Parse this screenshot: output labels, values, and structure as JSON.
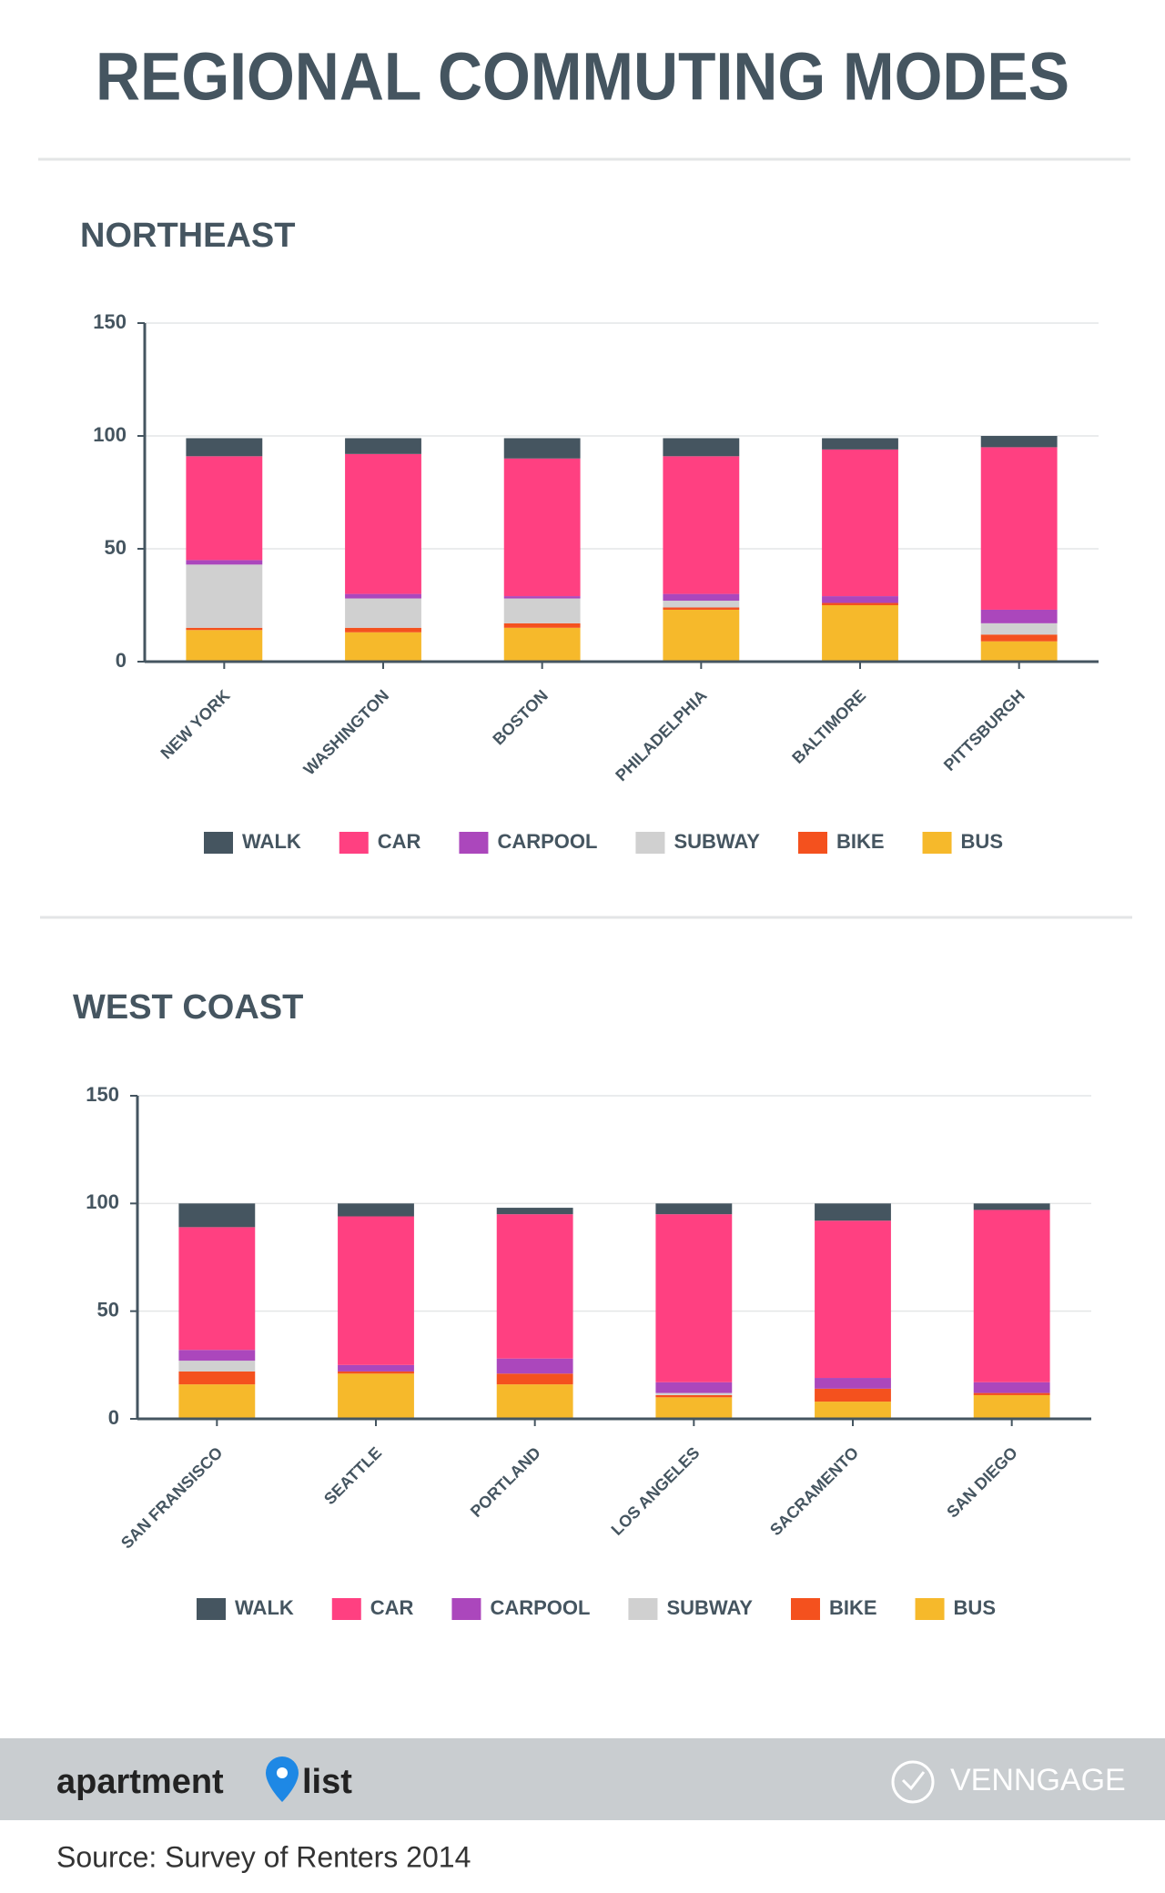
{
  "header": {
    "title": "REGIONAL COMMUTING MODES"
  },
  "chart_data": [
    {
      "type": "stacked_bar",
      "title": "NORTHEAST",
      "categories": [
        "NEW YORK",
        "WASHINGTON",
        "BOSTON",
        "PHILADELPHIA",
        "BALTIMORE",
        "PITTSBURGH"
      ],
      "series": [
        {
          "name": "WALK",
          "color": "#455560",
          "values": [
            8,
            7,
            9,
            8,
            5,
            5
          ]
        },
        {
          "name": "CAR",
          "color": "#ff4081",
          "values": [
            46,
            62,
            61,
            61,
            65,
            72
          ]
        },
        {
          "name": "CARPOOL",
          "color": "#ab47bc",
          "values": [
            2,
            2,
            1,
            3,
            3,
            6
          ]
        },
        {
          "name": "SUBWAY",
          "color": "#d0d0d0",
          "values": [
            28,
            13,
            11,
            3,
            0,
            5
          ]
        },
        {
          "name": "BIKE",
          "color": "#f4511e",
          "values": [
            1,
            2,
            2,
            1,
            1,
            3
          ]
        },
        {
          "name": "BUS",
          "color": "#f6b92b",
          "values": [
            14,
            13,
            15,
            23,
            25,
            9
          ]
        }
      ],
      "ylim": [
        0,
        150
      ],
      "yticks": [
        0,
        50,
        100,
        150
      ],
      "grid": true,
      "legend": "bottom"
    },
    {
      "type": "stacked_bar",
      "title": "WEST COAST",
      "categories": [
        "SAN FRANSISCO",
        "SEATTLE",
        "PORTLAND",
        "LOS ANGELES",
        "SACRAMENTO",
        "SAN DIEGO"
      ],
      "series": [
        {
          "name": "WALK",
          "color": "#455560",
          "values": [
            11,
            6,
            3,
            5,
            8,
            3
          ]
        },
        {
          "name": "CAR",
          "color": "#ff4081",
          "values": [
            57,
            69,
            67,
            78,
            73,
            80
          ]
        },
        {
          "name": "CARPOOL",
          "color": "#ab47bc",
          "values": [
            5,
            3,
            7,
            5,
            5,
            5
          ]
        },
        {
          "name": "SUBWAY",
          "color": "#d0d0d0",
          "values": [
            5,
            0,
            0,
            1,
            0,
            0
          ]
        },
        {
          "name": "BIKE",
          "color": "#f4511e",
          "values": [
            6,
            1,
            5,
            1,
            6,
            1
          ]
        },
        {
          "name": "BUS",
          "color": "#f6b92b",
          "values": [
            16,
            21,
            16,
            10,
            8,
            11
          ]
        }
      ],
      "ylim": [
        0,
        150
      ],
      "yticks": [
        0,
        50,
        100,
        150
      ],
      "grid": true,
      "legend": "bottom"
    }
  ],
  "footer": {
    "logo_left": "apartment",
    "logo_right": "list",
    "maker": "VENNGAGE",
    "source": "Source: Survey of Renters 2014"
  }
}
